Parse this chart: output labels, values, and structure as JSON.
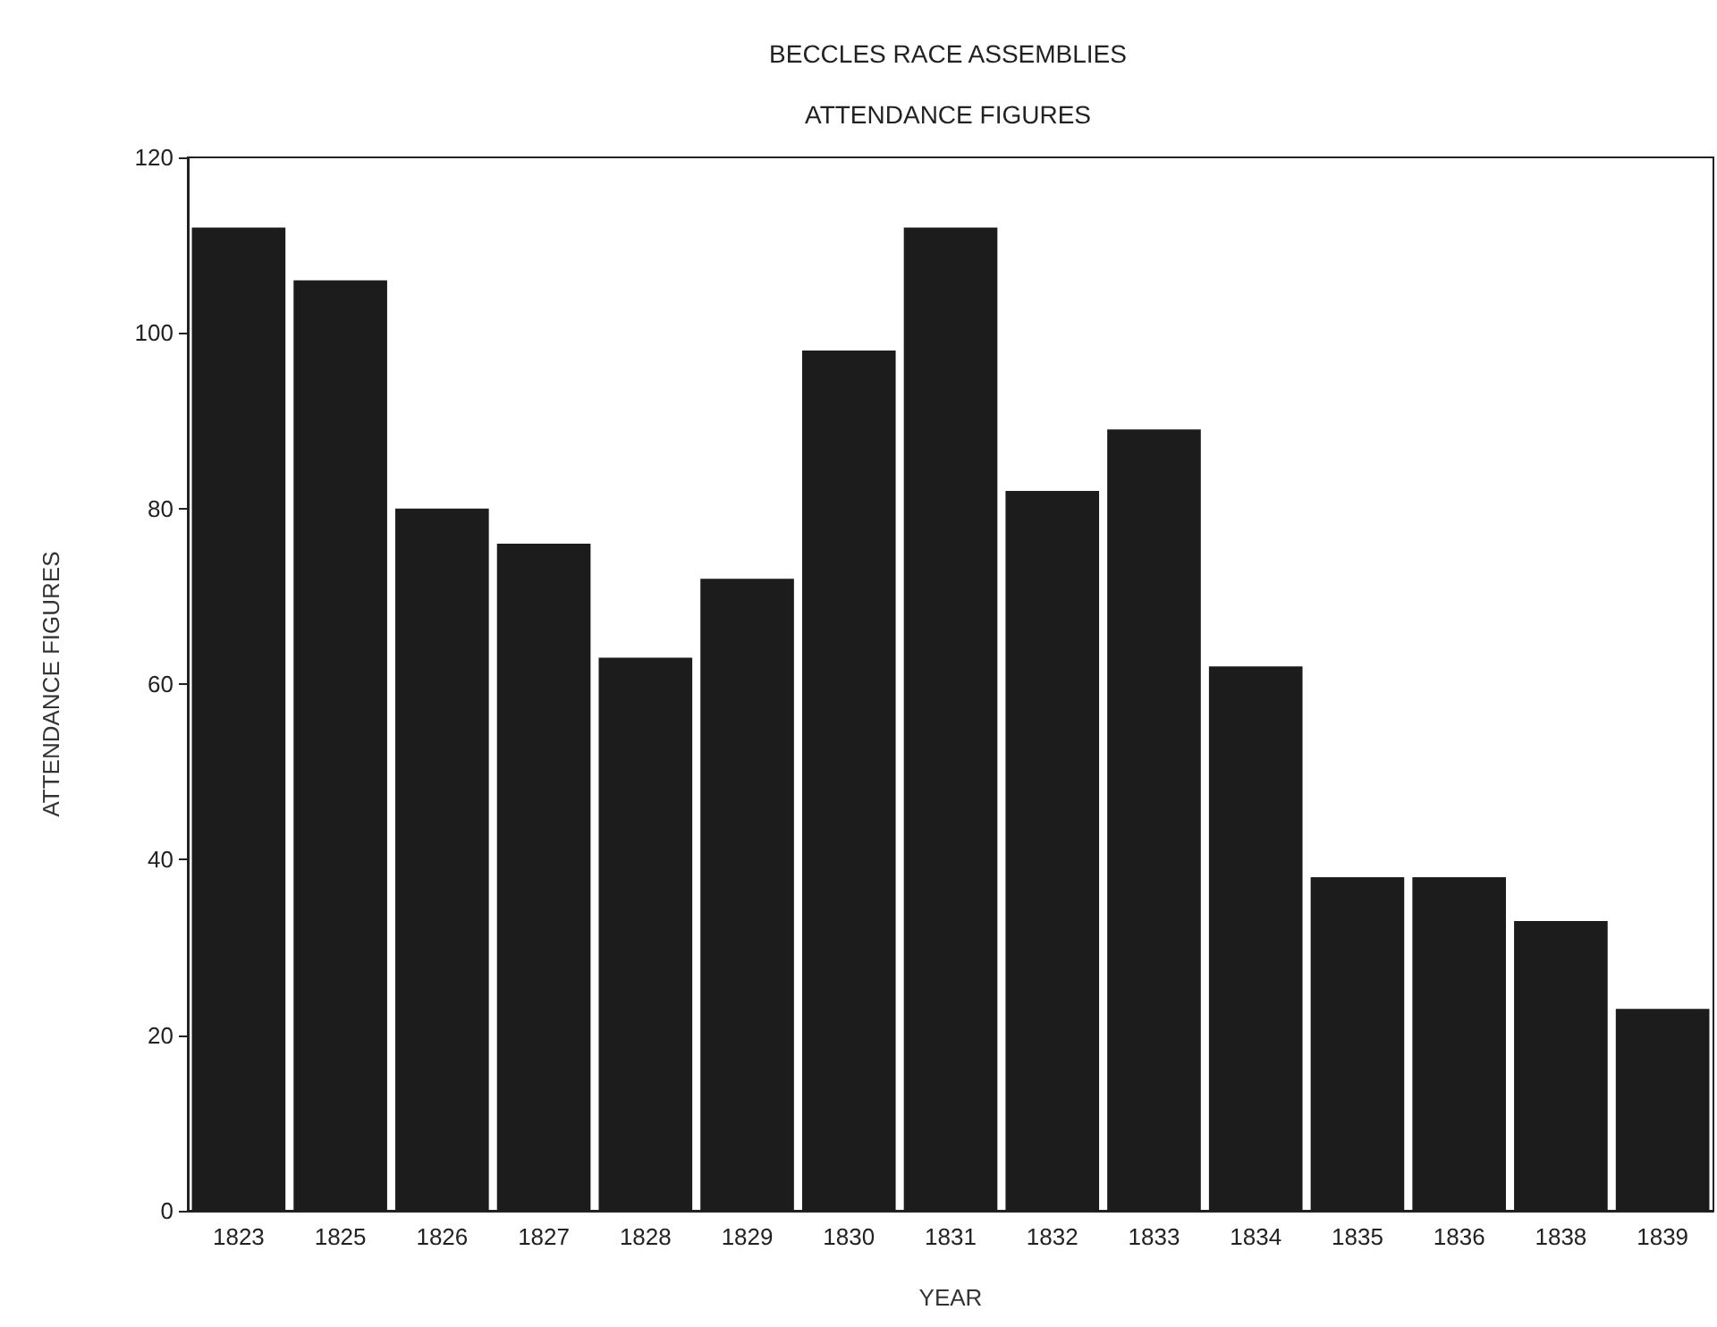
{
  "chart_data": {
    "type": "bar",
    "title": "BECCLES RACE ASSEMBLIES",
    "subtitle": "ATTENDANCE FIGURES",
    "xlabel": "YEAR",
    "ylabel": "ATTENDANCE FIGURES",
    "categories": [
      "1823",
      "1825",
      "1826",
      "1827",
      "1828",
      "1829",
      "1830",
      "1831",
      "1832",
      "1833",
      "1834",
      "1835",
      "1836",
      "1838",
      "1839"
    ],
    "values": [
      112,
      106,
      80,
      76,
      63,
      72,
      98,
      112,
      82,
      89,
      62,
      38,
      38,
      33,
      23
    ],
    "color": "#1c1c1c",
    "ylim": [
      0,
      120
    ],
    "yticks": [
      0,
      20,
      40,
      60,
      80,
      100,
      120
    ],
    "grid": false
  }
}
